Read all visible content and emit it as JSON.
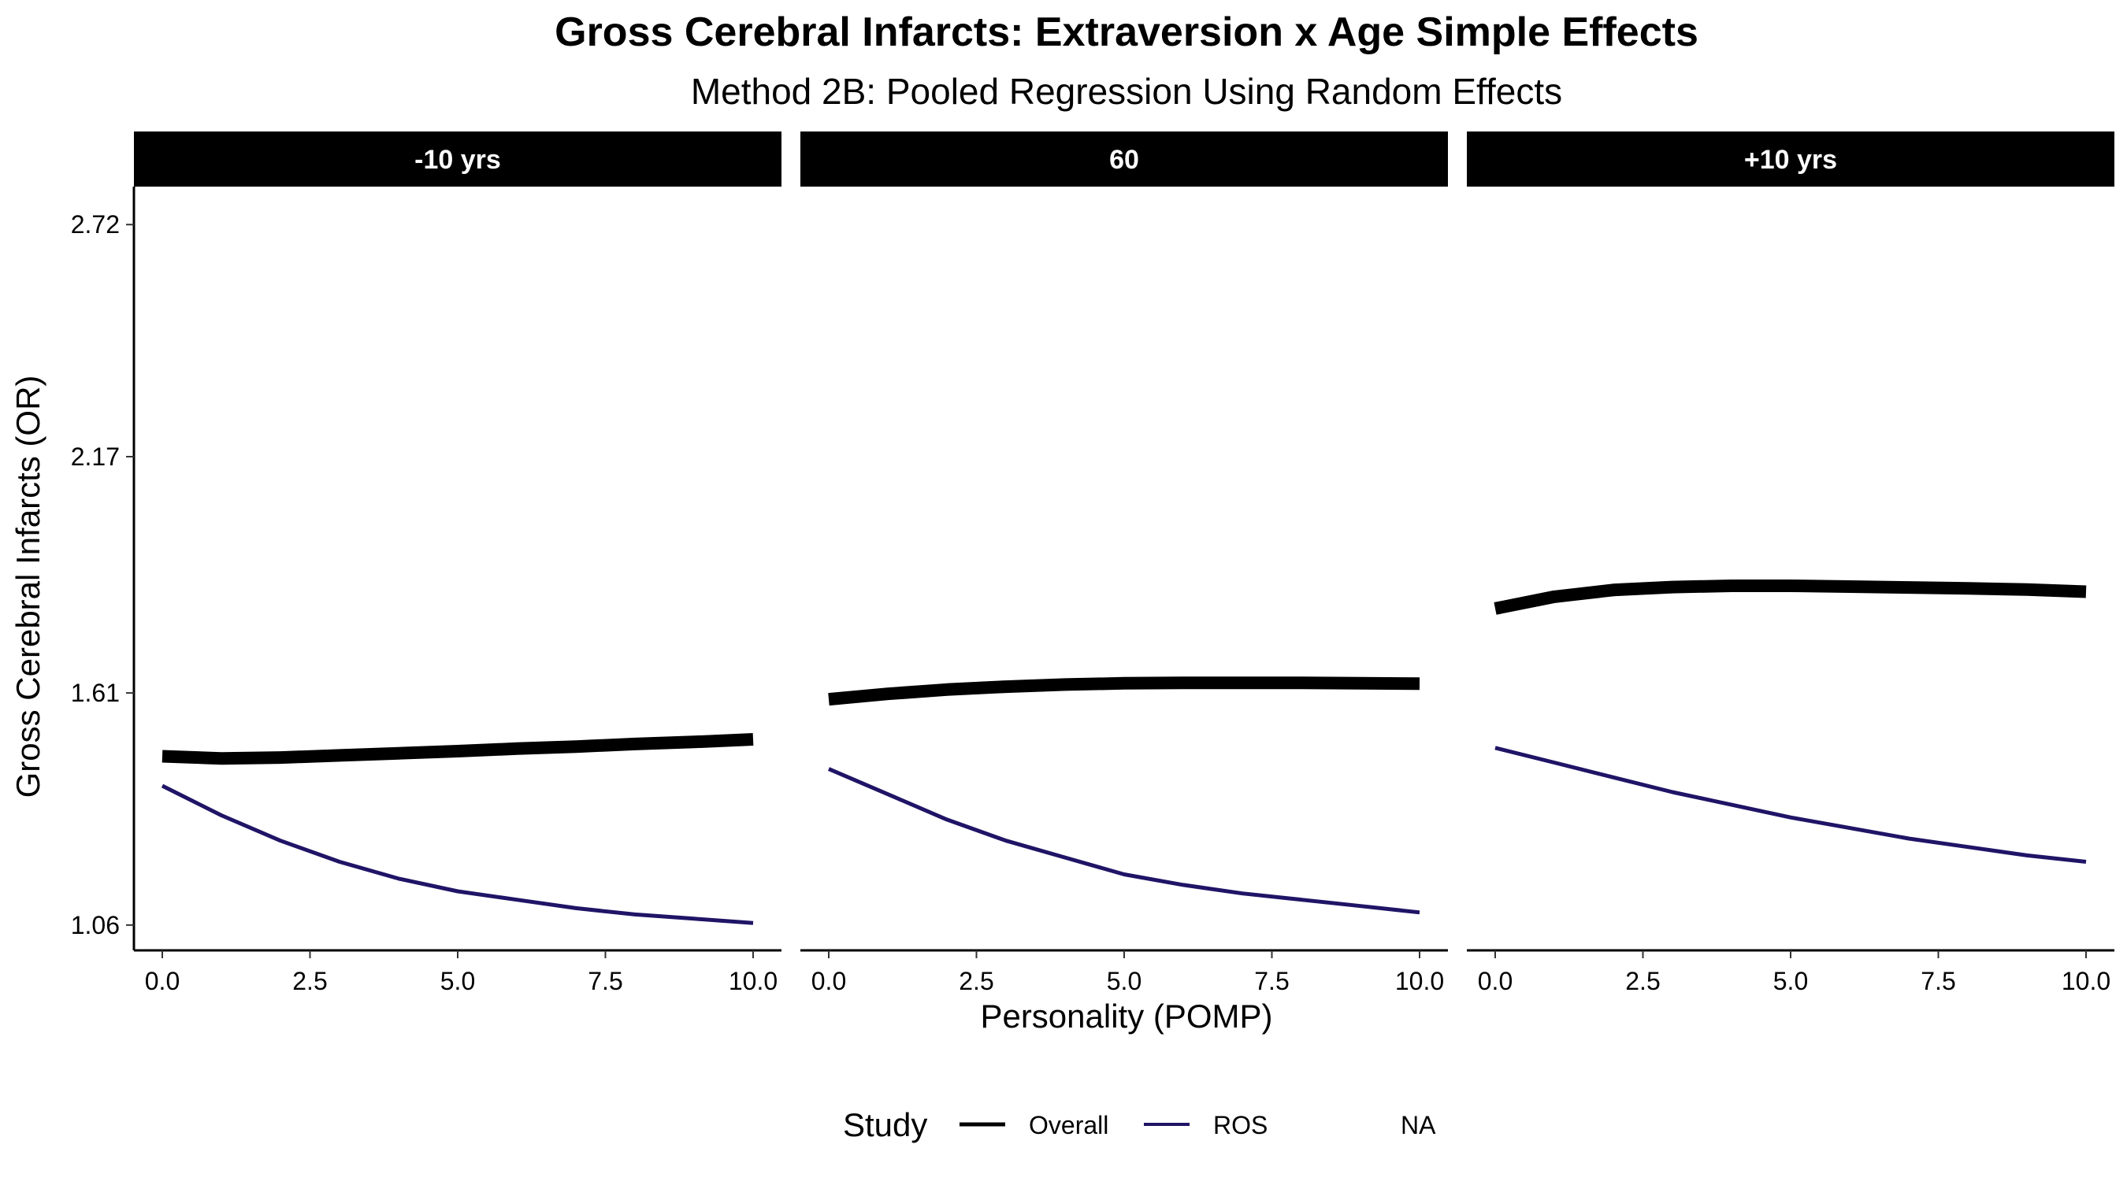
{
  "chart_data": {
    "type": "line",
    "title": "Gross Cerebral Infarcts: Extraversion x Age Simple Effects",
    "subtitle": "Method 2B: Pooled Regression Using Random Effects",
    "xlabel": "Personality (POMP)",
    "ylabel": "Gross Cerebral Infarcts (OR)",
    "xlim": [
      0,
      10
    ],
    "ylim": [
      1.0,
      2.81
    ],
    "x_ticks": [
      "0.0",
      "2.5",
      "5.0",
      "7.5",
      "10.0"
    ],
    "x_tick_values": [
      0,
      2.5,
      5,
      7.5,
      10
    ],
    "y_ticks": [
      "1.06",
      "1.61",
      "2.17",
      "2.72"
    ],
    "y_tick_values": [
      1.06,
      1.61,
      2.17,
      2.72
    ],
    "grid": false,
    "legend": {
      "title": "Study",
      "position": "bottom",
      "entries": [
        {
          "label": "Overall",
          "color": "#000000"
        },
        {
          "label": "ROS",
          "color": "#1f1466"
        },
        {
          "label": "NA",
          "color": null
        }
      ]
    },
    "facets": [
      {
        "label": "-10 yrs",
        "series": [
          {
            "name": "Overall",
            "color": "#000000",
            "x": [
              0,
              1,
              2,
              3,
              4,
              5,
              6,
              7,
              8,
              9,
              10
            ],
            "y": [
              1.46,
              1.455,
              1.457,
              1.462,
              1.467,
              1.472,
              1.478,
              1.483,
              1.489,
              1.494,
              1.5
            ]
          },
          {
            "name": "ROS",
            "color": "#1f1466",
            "x": [
              0,
              1,
              2,
              3,
              4,
              5,
              6,
              7,
              8,
              9,
              10
            ],
            "y": [
              1.39,
              1.32,
              1.26,
              1.21,
              1.17,
              1.14,
              1.12,
              1.1,
              1.085,
              1.075,
              1.065
            ]
          }
        ]
      },
      {
        "label": "60",
        "series": [
          {
            "name": "Overall",
            "color": "#000000",
            "x": [
              0,
              1,
              2,
              3,
              4,
              5,
              6,
              7,
              8,
              9,
              10
            ],
            "y": [
              1.595,
              1.608,
              1.618,
              1.625,
              1.63,
              1.633,
              1.634,
              1.634,
              1.634,
              1.633,
              1.632
            ]
          },
          {
            "name": "ROS",
            "color": "#1f1466",
            "x": [
              0,
              1,
              2,
              3,
              4,
              5,
              6,
              7,
              8,
              9,
              10
            ],
            "y": [
              1.43,
              1.37,
              1.31,
              1.26,
              1.22,
              1.18,
              1.155,
              1.135,
              1.12,
              1.105,
              1.09
            ]
          }
        ]
      },
      {
        "label": "+10 yrs",
        "series": [
          {
            "name": "Overall",
            "color": "#000000",
            "x": [
              0,
              1,
              2,
              3,
              4,
              5,
              6,
              7,
              8,
              9,
              10
            ],
            "y": [
              1.81,
              1.838,
              1.854,
              1.861,
              1.864,
              1.864,
              1.862,
              1.86,
              1.858,
              1.855,
              1.85
            ]
          },
          {
            "name": "ROS",
            "color": "#1f1466",
            "x": [
              0,
              1,
              2,
              3,
              4,
              5,
              6,
              7,
              8,
              9,
              10
            ],
            "y": [
              1.48,
              1.445,
              1.41,
              1.375,
              1.345,
              1.315,
              1.29,
              1.265,
              1.245,
              1.225,
              1.21
            ]
          }
        ]
      }
    ]
  }
}
